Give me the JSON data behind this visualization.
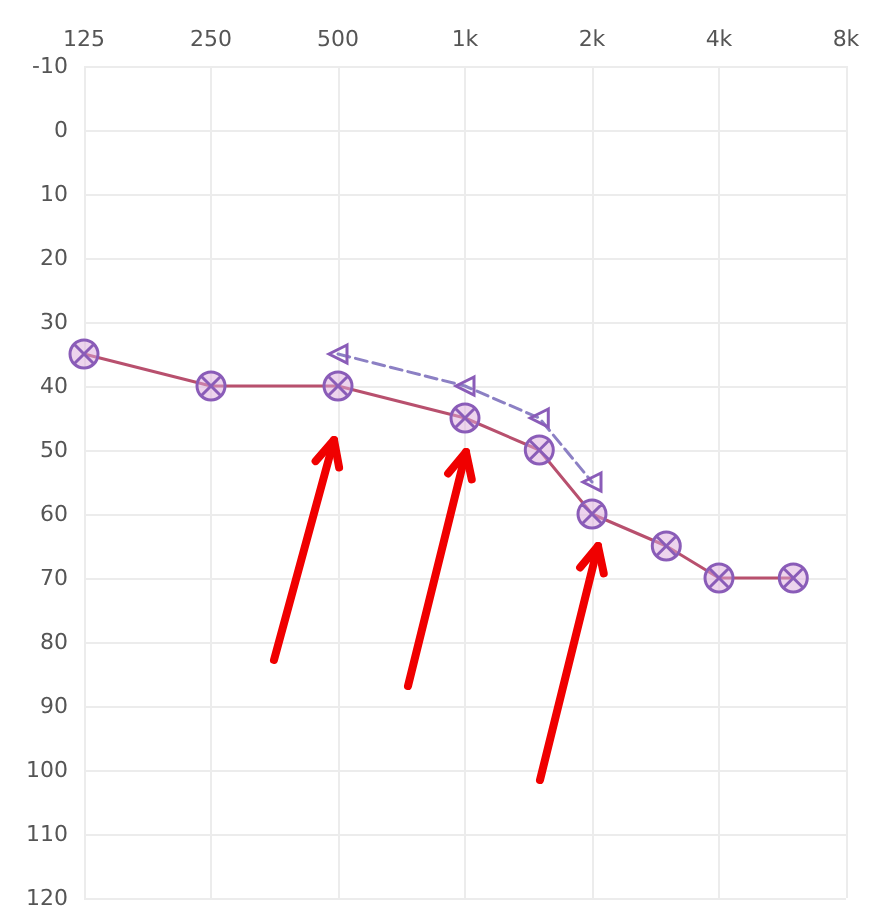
{
  "chart_data": {
    "type": "line",
    "xlim": [
      125,
      8000
    ],
    "xticks": [
      125,
      250,
      500,
      {
        "value": 1000,
        "label": "1k"
      },
      {
        "value": 2000,
        "label": "2k"
      },
      {
        "value": 4000,
        "label": "4k"
      },
      {
        "value": 8000,
        "label": "8k"
      }
    ],
    "ylim": [
      120,
      -10
    ],
    "yticks": [
      -10,
      0,
      10,
      20,
      30,
      40,
      50,
      60,
      70,
      80,
      90,
      100,
      110,
      120
    ],
    "log": "x",
    "grid": true,
    "series": [
      {
        "color": "#b8506e",
        "x": [
          125,
          250,
          500,
          1000,
          1500,
          2000,
          3000,
          4000,
          6000
        ],
        "values": [
          35,
          40,
          40,
          45,
          50,
          60,
          65,
          70,
          70
        ],
        "marker": "cross",
        "line_style": "solid"
      },
      {
        "color": "#8c80c4",
        "x": [
          500,
          1000,
          1500,
          2000
        ],
        "values": [
          35,
          40,
          45,
          55
        ],
        "marker": "triangle",
        "line_style": "dashed"
      }
    ]
  }
}
